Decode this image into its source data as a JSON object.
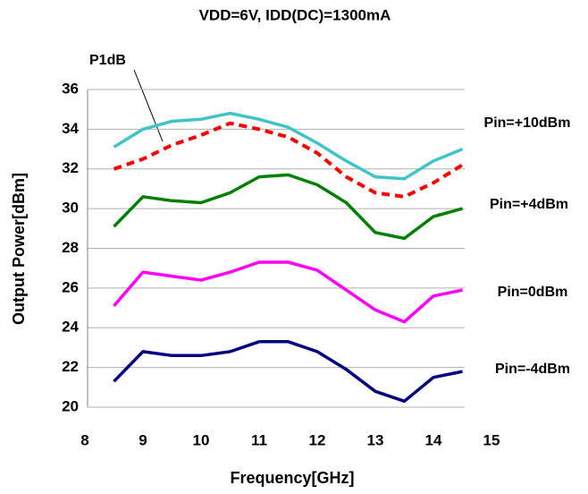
{
  "chart_data": {
    "type": "line",
    "title": "VDD=6V, IDD(DC)=1300mA",
    "x_label": "Frequency[GHz]",
    "y_label": "Output Power[dBm]",
    "x": [
      8.5,
      9,
      9.5,
      10,
      10.5,
      11,
      11.5,
      12,
      12.5,
      13,
      13.5,
      14,
      14.5
    ],
    "series": [
      {
        "name": "Pin=+10dBm",
        "color": "#40c4c8",
        "style": "solid",
        "values": [
          33.1,
          34.0,
          34.4,
          34.5,
          34.8,
          34.5,
          34.1,
          33.3,
          32.4,
          31.6,
          31.5,
          32.4,
          33.0
        ]
      },
      {
        "name": "P1dB",
        "color": "#ff0000",
        "style": "dashed",
        "values": [
          32.0,
          32.5,
          33.2,
          33.7,
          34.3,
          34.0,
          33.6,
          32.8,
          31.6,
          30.8,
          30.6,
          31.3,
          32.2
        ]
      },
      {
        "name": "Pin=+4dBm",
        "color": "#008000",
        "style": "solid",
        "values": [
          29.1,
          30.6,
          30.4,
          30.3,
          30.8,
          31.6,
          31.7,
          31.2,
          30.3,
          28.8,
          28.5,
          29.6,
          30.0
        ]
      },
      {
        "name": "Pin=0dBm",
        "color": "#ff00ff",
        "style": "solid",
        "values": [
          25.1,
          26.8,
          26.6,
          26.4,
          26.8,
          27.3,
          27.3,
          26.9,
          25.9,
          24.9,
          24.3,
          25.6,
          25.9
        ]
      },
      {
        "name": "Pin=-4dBm",
        "color": "#000080",
        "style": "solid",
        "values": [
          21.3,
          22.8,
          22.6,
          22.6,
          22.8,
          23.3,
          23.3,
          22.8,
          21.9,
          20.8,
          20.3,
          21.5,
          21.8
        ]
      }
    ],
    "xlim": [
      8,
      15
    ],
    "xticks": [
      8,
      9,
      10,
      11,
      12,
      13,
      14,
      15
    ],
    "ylim": [
      20,
      36
    ],
    "yticks": [
      20,
      22,
      24,
      26,
      28,
      30,
      32,
      34,
      36
    ],
    "grid": true
  }
}
